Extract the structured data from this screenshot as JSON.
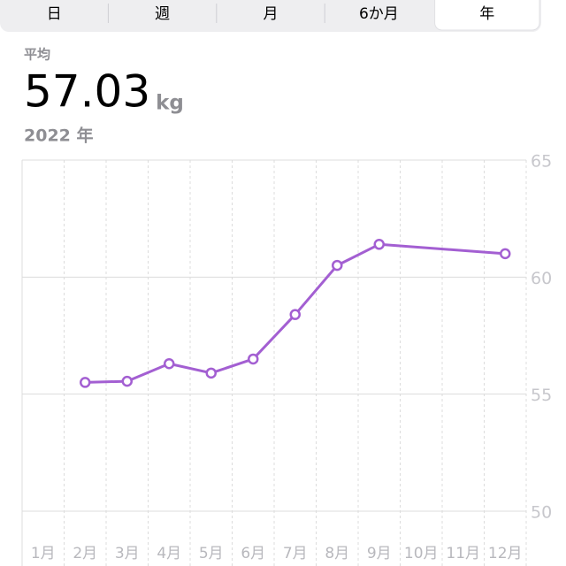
{
  "tabs": [
    "日",
    "週",
    "月",
    "6か月",
    "年"
  ],
  "selected_tab": "年",
  "summary": {
    "label": "平均",
    "value": 57.03,
    "unit": "kg",
    "period": "2022 年"
  },
  "chart_data": {
    "type": "line",
    "x": [
      2,
      3,
      4,
      5,
      6,
      7,
      8,
      9,
      12
    ],
    "values": [
      55.5,
      55.55,
      56.3,
      55.9,
      56.5,
      58.4,
      60.5,
      61.4,
      61.0
    ],
    "color": "#a35fd2",
    "xlim": [
      0.5,
      12.5
    ],
    "xticks": [
      {
        "value": 1,
        "label": "1月"
      },
      {
        "value": 2,
        "label": "2月"
      },
      {
        "value": 3,
        "label": "3月"
      },
      {
        "value": 4,
        "label": "4月"
      },
      {
        "value": 5,
        "label": "5月"
      },
      {
        "value": 6,
        "label": "6月"
      },
      {
        "value": 7,
        "label": "7月"
      },
      {
        "value": 8,
        "label": "8月"
      },
      {
        "value": 9,
        "label": "9月"
      },
      {
        "value": 10,
        "label": "10月"
      },
      {
        "value": 11,
        "label": "11月"
      },
      {
        "value": 12,
        "label": "12月"
      }
    ],
    "ylim": [
      50,
      65
    ],
    "yticks": [
      50,
      55,
      60,
      65
    ],
    "grid": true
  }
}
